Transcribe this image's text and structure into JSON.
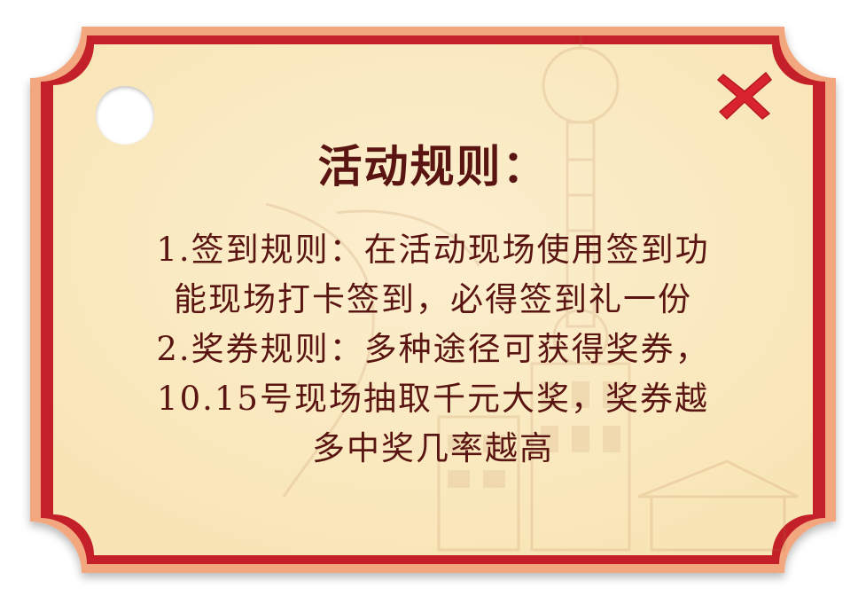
{
  "dialog": {
    "title": "活动规则：",
    "rules": [
      "1.签到规则：在活动现场使用签到功",
      "能现场打卡签到，必得签到礼一份",
      "2.奖券规则：多种途径可获得奖券，",
      "10.15号现场抽取千元大奖，奖券越",
      "多中奖几率越高"
    ]
  },
  "colors": {
    "outer_frame": "#f3a77f",
    "red_border": "#c4202a",
    "card_fill": "#fbebc4",
    "text": "#5a1512",
    "close_icon": "#d9232e"
  },
  "icons": {
    "close": "close-icon",
    "hole": "punch-hole"
  }
}
